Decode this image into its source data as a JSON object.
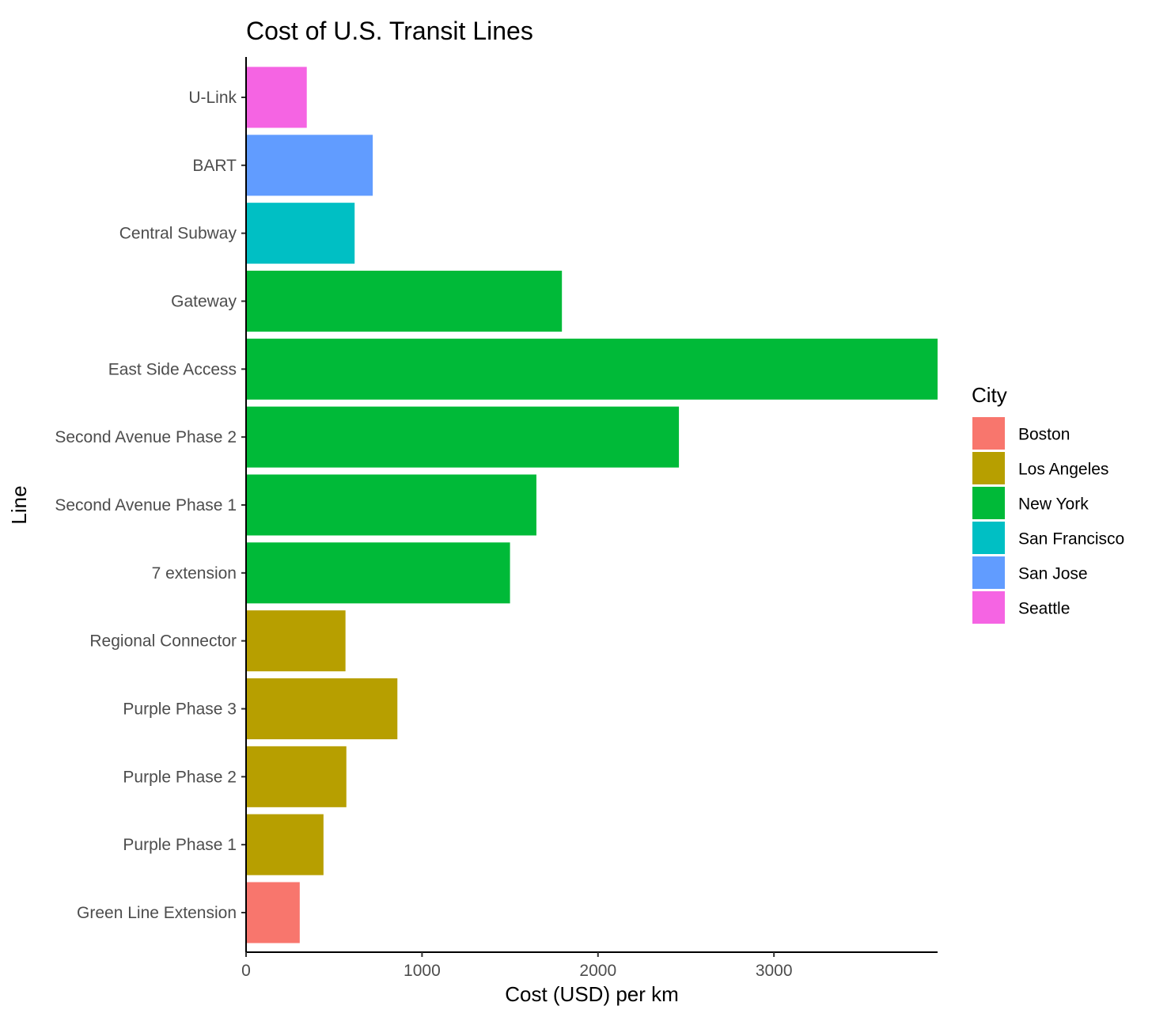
{
  "chart_data": {
    "type": "bar",
    "orientation": "horizontal",
    "title": "Cost of U.S. Transit Lines",
    "xlabel": "Cost (USD) per km",
    "ylabel": "Line",
    "xlim": [
      0,
      3930
    ],
    "x_ticks": [
      0,
      1000,
      2000,
      3000
    ],
    "x_tick_labels": [
      "0",
      "1000",
      "2000",
      "3000"
    ],
    "grid": false,
    "legend": {
      "title": "City",
      "placement": "right",
      "entries": [
        {
          "label": "Boston",
          "color": "#F8766D"
        },
        {
          "label": "Los Angeles",
          "color": "#B79F00"
        },
        {
          "label": "New York",
          "color": "#00BA38"
        },
        {
          "label": "San Francisco",
          "color": "#00BFC4"
        },
        {
          "label": "San Jose",
          "color": "#619CFF"
        },
        {
          "label": "Seattle",
          "color": "#F564E3"
        }
      ]
    },
    "bars": [
      {
        "line": "U-Link",
        "city": "Seattle",
        "value": 345
      },
      {
        "line": "BART",
        "city": "San Jose",
        "value": 720
      },
      {
        "line": "Central Subway",
        "city": "San Francisco",
        "value": 617
      },
      {
        "line": "Gateway",
        "city": "New York",
        "value": 1795
      },
      {
        "line": "East Side Access",
        "city": "New York",
        "value": 3930
      },
      {
        "line": "Second Avenue Phase 2",
        "city": "New York",
        "value": 2460
      },
      {
        "line": "Second Avenue Phase 1",
        "city": "New York",
        "value": 1650
      },
      {
        "line": "7 extension",
        "city": "New York",
        "value": 1500
      },
      {
        "line": "Regional Connector",
        "city": "Los Angeles",
        "value": 565
      },
      {
        "line": "Purple Phase 3",
        "city": "Los Angeles",
        "value": 860
      },
      {
        "line": "Purple Phase 2",
        "city": "Los Angeles",
        "value": 570
      },
      {
        "line": "Purple Phase 1",
        "city": "Los Angeles",
        "value": 440
      },
      {
        "line": "Green Line Extension",
        "city": "Boston",
        "value": 305
      }
    ]
  }
}
